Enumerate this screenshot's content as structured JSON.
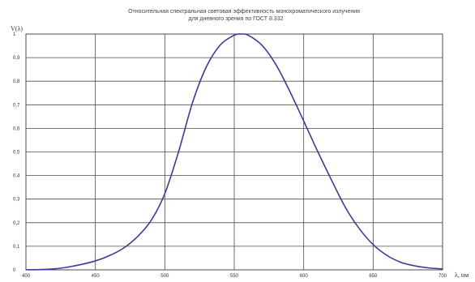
{
  "chart_data": {
    "type": "line",
    "title_lines": [
      "Относительная спектральная световая эффективность монохроматического излучения",
      "для дневного зрения по ГОСТ 8.332"
    ],
    "ylabel": "V(λ)",
    "xlabel": "λ, нм",
    "x_ticks": [
      "400",
      "450",
      "500",
      "550",
      "600",
      "650",
      "700"
    ],
    "y_ticks": [
      "0",
      "0,1",
      "0,2",
      "0,3",
      "0,4",
      "0,5",
      "0,6",
      "0,7",
      "0,8",
      "0,9",
      "1"
    ],
    "xlim": [
      400,
      700
    ],
    "ylim": [
      0,
      1
    ],
    "grid": true,
    "series": [
      {
        "color": "#3a3d9a",
        "x": [
          400,
          410,
          420,
          430,
          440,
          450,
          460,
          470,
          480,
          490,
          500,
          510,
          520,
          530,
          540,
          550,
          555,
          560,
          570,
          580,
          590,
          600,
          610,
          620,
          630,
          640,
          650,
          660,
          670,
          680,
          690,
          700
        ],
        "y": [
          0.0004,
          0.0012,
          0.004,
          0.0116,
          0.023,
          0.038,
          0.06,
          0.091,
          0.139,
          0.208,
          0.323,
          0.503,
          0.71,
          0.862,
          0.954,
          0.995,
          1.0,
          0.995,
          0.952,
          0.87,
          0.757,
          0.631,
          0.503,
          0.381,
          0.265,
          0.175,
          0.107,
          0.061,
          0.032,
          0.017,
          0.0082,
          0.0041
        ]
      }
    ]
  }
}
